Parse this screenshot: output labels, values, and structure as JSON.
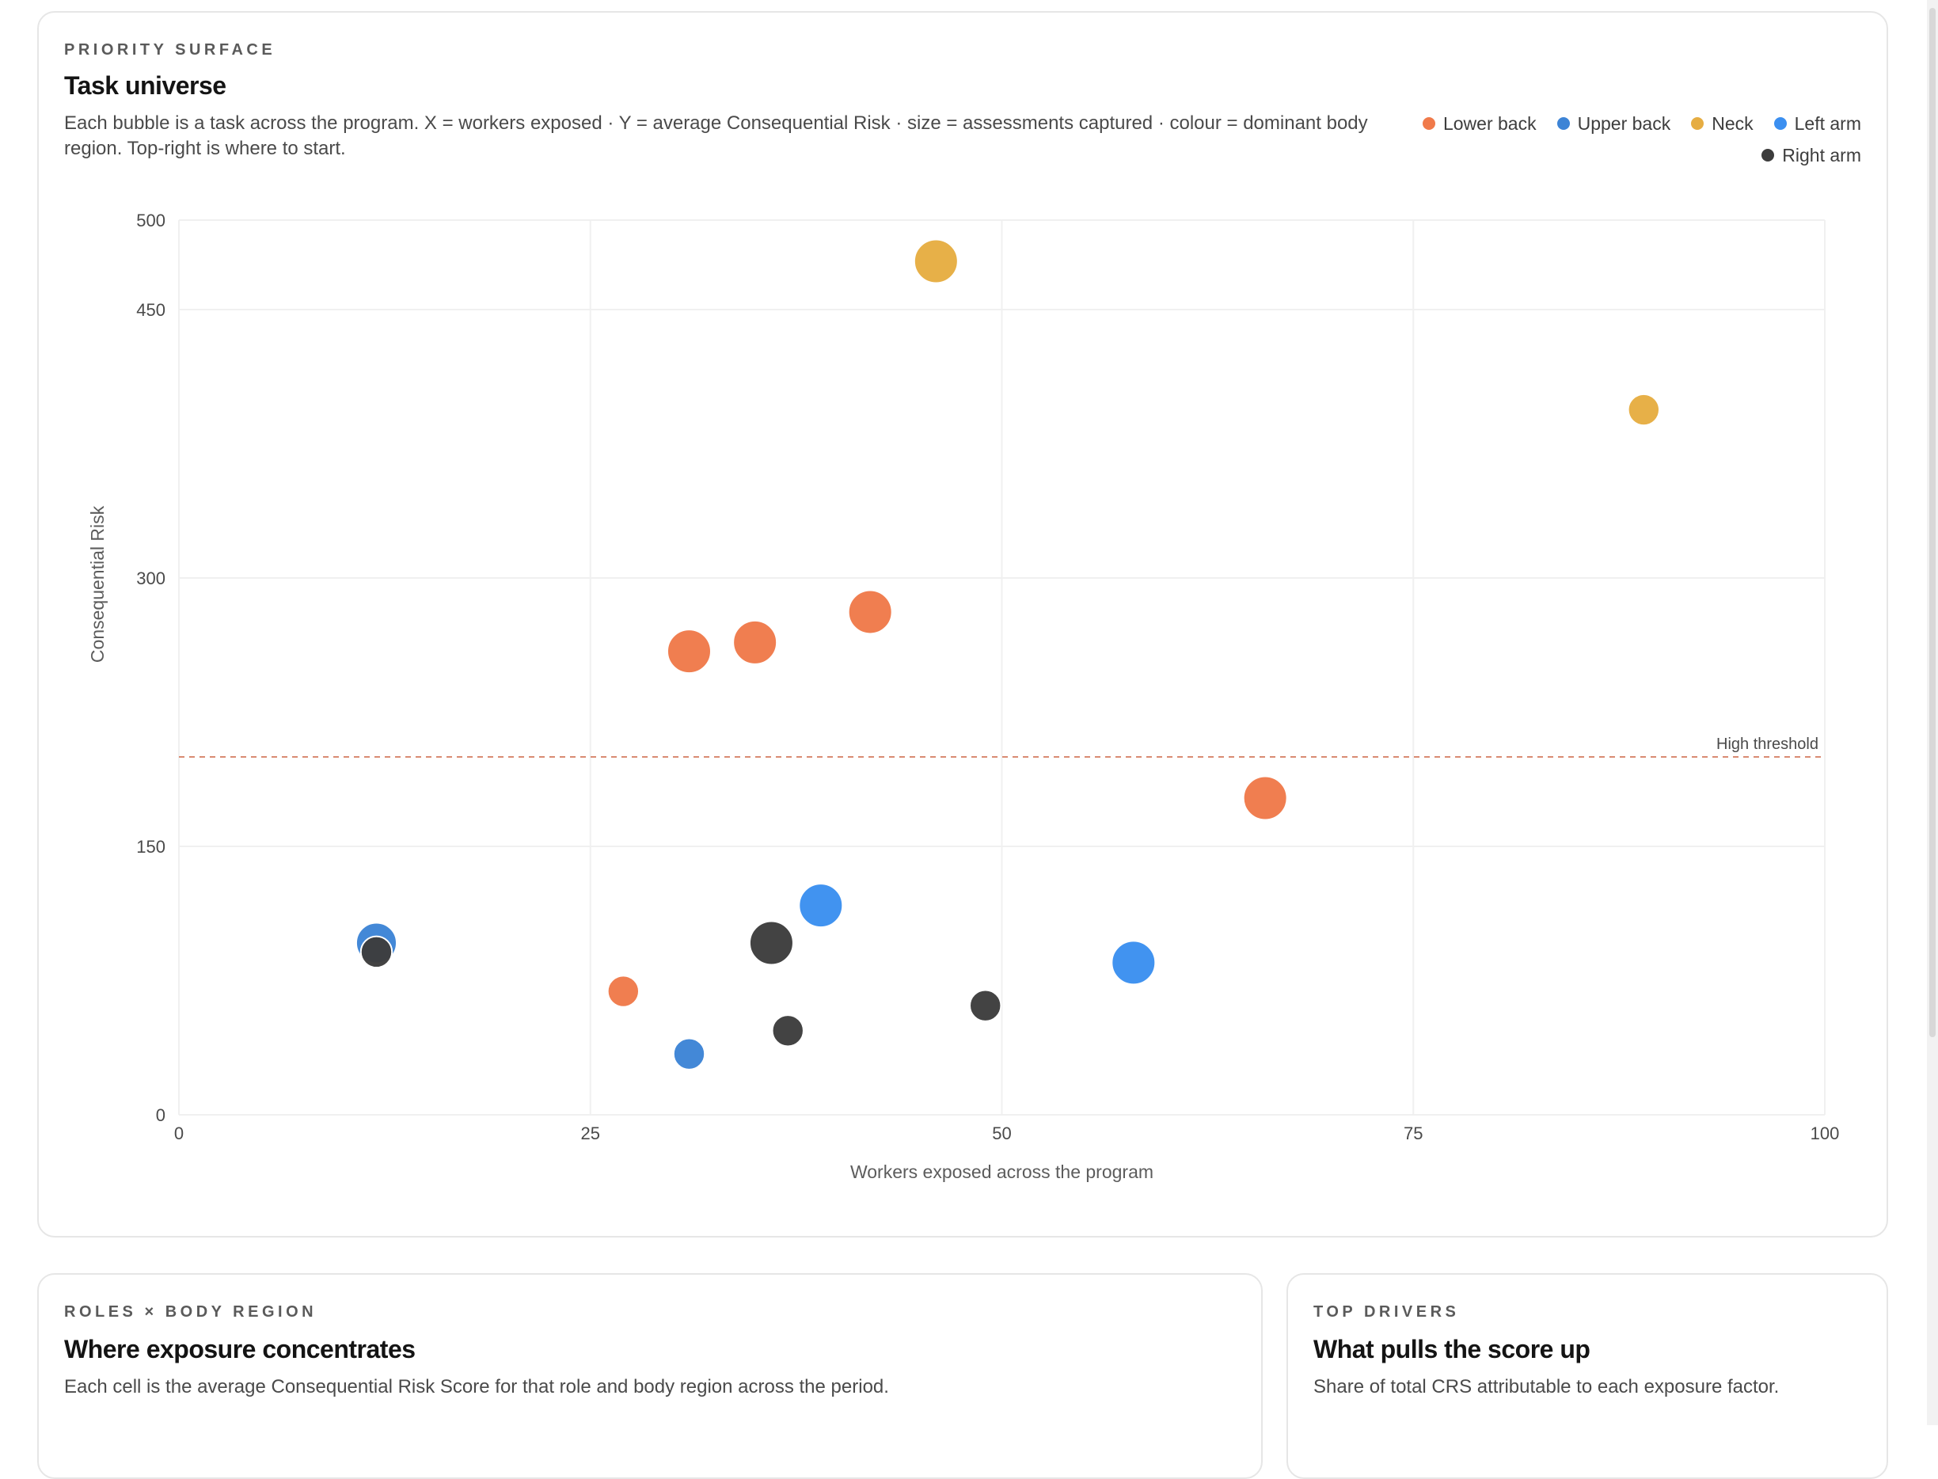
{
  "priority_card": {
    "eyebrow": "PRIORITY SURFACE",
    "title": "Task universe",
    "description": "Each bubble is a task across the program. X = workers exposed · Y = average Consequential Risk · size = assessments captured · colour = dominant body region. Top-right is where to start."
  },
  "roles_card": {
    "eyebrow": "ROLES × BODY REGION",
    "title": "Where exposure concentrates",
    "description": "Each cell is the average Consequential Risk Score for that role and body region across the period."
  },
  "drivers_card": {
    "eyebrow": "TOP DRIVERS",
    "title": "What pulls the score up",
    "description": "Share of total CRS attributable to each exposure factor."
  },
  "colors": {
    "Lower back": "#f07a4a",
    "Upper back": "#3d84d6",
    "Neck": "#e6ad42",
    "Left arm": "#3b8ff0",
    "Right arm": "#3d3d3d"
  },
  "chart_data": {
    "type": "scatter",
    "xlabel": "Workers exposed across the program",
    "ylabel": "Consequential Risk",
    "xlim": [
      0,
      100
    ],
    "ylim": [
      0,
      500
    ],
    "x_ticks": [
      "0",
      "25",
      "50",
      "75",
      "100"
    ],
    "y_ticks": [
      "0",
      "150",
      "300",
      "450",
      "500"
    ],
    "x_tick_values": [
      0,
      25,
      50,
      75,
      100
    ],
    "y_tick_values": [
      0,
      150,
      300,
      450,
      500
    ],
    "grid": true,
    "legend_position": "top-right",
    "legend": [
      "Lower back",
      "Upper back",
      "Neck",
      "Left arm",
      "Right arm"
    ],
    "reference_line": {
      "label": "High threshold",
      "y": 200
    },
    "series": [
      {
        "name": "Lower back",
        "points": [
          {
            "x": 31,
            "y": 259,
            "size": 10
          },
          {
            "x": 35,
            "y": 264,
            "size": 10
          },
          {
            "x": 42,
            "y": 281,
            "size": 10
          },
          {
            "x": 66,
            "y": 177,
            "size": 10
          },
          {
            "x": 27,
            "y": 69,
            "size": 6
          }
        ]
      },
      {
        "name": "Upper back",
        "points": [
          {
            "x": 12,
            "y": 96,
            "size": 9
          },
          {
            "x": 31,
            "y": 34,
            "size": 6
          }
        ]
      },
      {
        "name": "Neck",
        "points": [
          {
            "x": 46,
            "y": 477,
            "size": 10
          },
          {
            "x": 89,
            "y": 394,
            "size": 6
          }
        ]
      },
      {
        "name": "Left arm",
        "points": [
          {
            "x": 39,
            "y": 117,
            "size": 10
          },
          {
            "x": 58,
            "y": 85,
            "size": 10
          }
        ]
      },
      {
        "name": "Right arm",
        "points": [
          {
            "x": 12,
            "y": 91,
            "size": 6
          },
          {
            "x": 36,
            "y": 96,
            "size": 10
          },
          {
            "x": 37,
            "y": 47,
            "size": 6
          },
          {
            "x": 49,
            "y": 61,
            "size": 6
          }
        ]
      }
    ]
  }
}
